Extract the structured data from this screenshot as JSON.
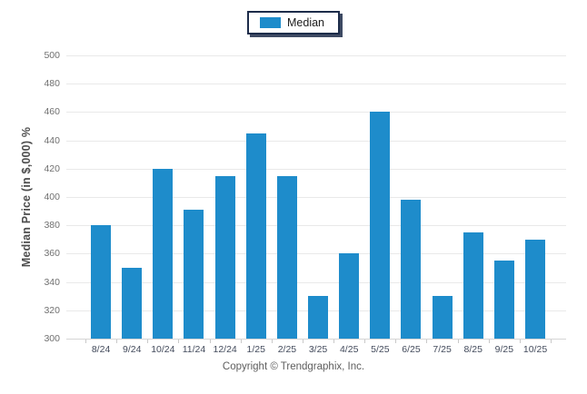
{
  "legend": {
    "label": "Median"
  },
  "ylabel": "Median Price (in $,000) %",
  "footer": "Copyright © Trendgraphix, Inc.",
  "colors": {
    "bar": "#1e8ccb",
    "grid": "#e9e9e9",
    "baseline": "#d5d5d5",
    "legend_border": "#1d2c4a",
    "ytick_text": "#707070",
    "xtick_text": "#434b5c"
  },
  "chart_data": {
    "type": "bar",
    "title": "",
    "categories": [
      "8/24",
      "9/24",
      "10/24",
      "11/24",
      "12/24",
      "1/25",
      "2/25",
      "3/25",
      "4/25",
      "5/25",
      "6/25",
      "7/25",
      "8/25",
      "9/25",
      "10/25"
    ],
    "series": [
      {
        "name": "Median",
        "values": [
          380,
          350,
          420,
          391,
          415,
          445,
          415,
          330,
          360,
          460,
          398,
          330,
          375,
          355,
          370
        ]
      }
    ],
    "xlabel": "",
    "ylabel": "Median Price (in $,000) %",
    "ylim": [
      300,
      500
    ],
    "yticks": [
      300,
      320,
      340,
      360,
      380,
      400,
      420,
      440,
      460,
      480,
      500
    ],
    "grid": true,
    "legend_position": "top-center"
  }
}
